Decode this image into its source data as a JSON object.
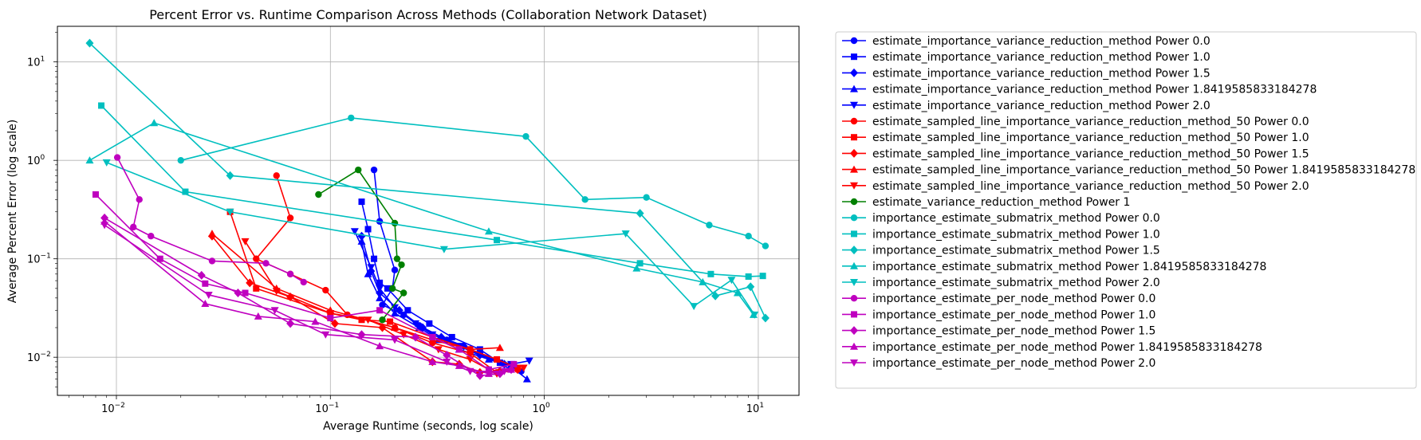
{
  "chart_data": {
    "type": "line",
    "title": "Percent Error vs. Runtime Comparison Across Methods (Collaboration Network Dataset)",
    "xlabel": "Average Runtime (seconds, log scale)",
    "ylabel": "Average Percent Error (log scale)",
    "xscale": "log",
    "yscale": "log",
    "xlim": [
      0.0053,
      15.5
    ],
    "ylim": [
      0.0041,
      23
    ],
    "x_ticks": [
      {
        "value": 0.01,
        "base": "10",
        "exp": "−2"
      },
      {
        "value": 0.1,
        "base": "10",
        "exp": "−1"
      },
      {
        "value": 1,
        "base": "10",
        "exp": "0"
      },
      {
        "value": 10,
        "base": "10",
        "exp": "1"
      }
    ],
    "y_ticks": [
      {
        "value": 0.01,
        "base": "10",
        "exp": "−2"
      },
      {
        "value": 0.1,
        "base": "10",
        "exp": "−1"
      },
      {
        "value": 1,
        "base": "10",
        "exp": "0"
      },
      {
        "value": 10,
        "base": "10",
        "exp": "1"
      }
    ],
    "grid": true,
    "legend_position": "outside-right",
    "series": [
      {
        "name": "estimate_importance_variance_reduction_method Power 0.0",
        "color": "#0000ff",
        "marker": "circle",
        "points": [
          [
            0.16,
            0.8
          ],
          [
            0.17,
            0.24
          ],
          [
            0.2,
            0.077
          ],
          [
            0.195,
            0.05
          ],
          [
            0.175,
            0.034
          ],
          [
            0.22,
            0.027
          ],
          [
            0.26,
            0.021
          ],
          [
            0.35,
            0.015
          ],
          [
            0.5,
            0.011
          ],
          [
            0.7,
            0.0075
          ],
          [
            0.78,
            0.0072
          ]
        ]
      },
      {
        "name": "estimate_importance_variance_reduction_method Power 1.0",
        "color": "#0000ff",
        "marker": "square",
        "points": [
          [
            0.14,
            0.38
          ],
          [
            0.15,
            0.2
          ],
          [
            0.16,
            0.1
          ],
          [
            0.17,
            0.057
          ],
          [
            0.185,
            0.05
          ],
          [
            0.23,
            0.03
          ],
          [
            0.29,
            0.022
          ],
          [
            0.37,
            0.016
          ],
          [
            0.5,
            0.012
          ],
          [
            0.62,
            0.0088
          ],
          [
            0.7,
            0.008
          ]
        ]
      },
      {
        "name": "estimate_importance_variance_reduction_method Power 1.5",
        "color": "#0000ff",
        "marker": "diamond",
        "points": [
          [
            0.14,
            0.17
          ],
          [
            0.155,
            0.075
          ],
          [
            0.17,
            0.045
          ],
          [
            0.21,
            0.03
          ],
          [
            0.27,
            0.02
          ],
          [
            0.33,
            0.016
          ],
          [
            0.42,
            0.013
          ],
          [
            0.5,
            0.0105
          ],
          [
            0.65,
            0.0085
          ],
          [
            0.74,
            0.0078
          ]
        ]
      },
      {
        "name": "estimate_importance_variance_reduction_method Power 1.8419585833184278",
        "color": "#0000ff",
        "marker": "triangle-up",
        "points": [
          [
            0.14,
            0.15
          ],
          [
            0.15,
            0.07
          ],
          [
            0.17,
            0.04
          ],
          [
            0.2,
            0.028
          ],
          [
            0.26,
            0.02
          ],
          [
            0.32,
            0.015
          ],
          [
            0.4,
            0.012
          ],
          [
            0.55,
            0.0095
          ],
          [
            0.7,
            0.008
          ],
          [
            0.83,
            0.006
          ]
        ]
      },
      {
        "name": "estimate_importance_variance_reduction_method Power 2.0",
        "color": "#0000ff",
        "marker": "triangle-down",
        "points": [
          [
            0.13,
            0.19
          ],
          [
            0.155,
            0.082
          ],
          [
            0.17,
            0.05
          ],
          [
            0.2,
            0.032
          ],
          [
            0.25,
            0.022
          ],
          [
            0.3,
            0.017
          ],
          [
            0.4,
            0.013
          ],
          [
            0.5,
            0.0105
          ],
          [
            0.7,
            0.0085
          ],
          [
            0.85,
            0.0092
          ]
        ]
      },
      {
        "name": "estimate_sampled_line_importance_variance_reduction_method_50 Power 0.0",
        "color": "#ff0000",
        "marker": "circle",
        "points": [
          [
            0.056,
            0.7
          ],
          [
            0.065,
            0.26
          ],
          [
            0.045,
            0.1
          ],
          [
            0.065,
            0.07
          ],
          [
            0.095,
            0.048
          ],
          [
            0.12,
            0.027
          ],
          [
            0.2,
            0.02
          ],
          [
            0.3,
            0.014
          ],
          [
            0.45,
            0.011
          ],
          [
            0.6,
            0.007
          ],
          [
            0.75,
            0.0075
          ]
        ]
      },
      {
        "name": "estimate_sampled_line_importance_variance_reduction_method_50 Power 1.0",
        "color": "#ff0000",
        "marker": "square",
        "points": [
          [
            0.034,
            0.3
          ],
          [
            0.045,
            0.05
          ],
          [
            0.1,
            0.028
          ],
          [
            0.14,
            0.024
          ],
          [
            0.19,
            0.023
          ],
          [
            0.3,
            0.016
          ],
          [
            0.45,
            0.012
          ],
          [
            0.6,
            0.0095
          ],
          [
            0.75,
            0.0078
          ]
        ]
      },
      {
        "name": "estimate_sampled_line_importance_variance_reduction_method_50 Power 1.5",
        "color": "#ff0000",
        "marker": "diamond",
        "points": [
          [
            0.028,
            0.17
          ],
          [
            0.042,
            0.057
          ],
          [
            0.065,
            0.041
          ],
          [
            0.105,
            0.022
          ],
          [
            0.175,
            0.02
          ],
          [
            0.3,
            0.009
          ],
          [
            0.4,
            0.0085
          ],
          [
            0.5,
            0.007
          ],
          [
            0.62,
            0.0072
          ],
          [
            0.75,
            0.0075
          ]
        ]
      },
      {
        "name": "estimate_sampled_line_importance_variance_reduction_method_50 Power 1.8419585833184278",
        "color": "#ff0000",
        "marker": "triangle-up",
        "points": [
          [
            0.028,
            0.18
          ],
          [
            0.056,
            0.05
          ],
          [
            0.1,
            0.03
          ],
          [
            0.2,
            0.02
          ],
          [
            0.3,
            0.015
          ],
          [
            0.45,
            0.012
          ],
          [
            0.62,
            0.0125
          ]
        ]
      },
      {
        "name": "estimate_sampled_line_importance_variance_reduction_method_50 Power 2.0",
        "color": "#ff0000",
        "marker": "triangle-down",
        "points": [
          [
            0.04,
            0.15
          ],
          [
            0.056,
            0.047
          ],
          [
            0.1,
            0.028
          ],
          [
            0.15,
            0.024
          ],
          [
            0.22,
            0.017
          ],
          [
            0.32,
            0.012
          ],
          [
            0.45,
            0.0095
          ],
          [
            0.6,
            0.0068
          ],
          [
            0.8,
            0.0078
          ]
        ]
      },
      {
        "name": "estimate_variance_reduction_method Power 1",
        "color": "#008000",
        "marker": "circle",
        "points": [
          [
            0.088,
            0.45
          ],
          [
            0.135,
            0.8
          ],
          [
            0.2,
            0.23
          ],
          [
            0.205,
            0.1
          ],
          [
            0.215,
            0.087
          ],
          [
            0.195,
            0.05
          ],
          [
            0.22,
            0.045
          ],
          [
            0.175,
            0.024
          ]
        ]
      },
      {
        "name": "importance_estimate_submatrix_method Power 0.0",
        "color": "#00bfbf",
        "marker": "circle",
        "points": [
          [
            0.02,
            1.0
          ],
          [
            0.125,
            2.7
          ],
          [
            0.82,
            1.75
          ],
          [
            1.55,
            0.4
          ],
          [
            3.0,
            0.42
          ],
          [
            5.9,
            0.22
          ],
          [
            9.0,
            0.17
          ],
          [
            10.8,
            0.135
          ]
        ]
      },
      {
        "name": "importance_estimate_submatrix_method Power 1.0",
        "color": "#00bfbf",
        "marker": "square",
        "points": [
          [
            0.0085,
            3.6
          ],
          [
            0.021,
            0.48
          ],
          [
            0.6,
            0.155
          ],
          [
            2.8,
            0.09
          ],
          [
            6.0,
            0.07
          ],
          [
            9.0,
            0.066
          ],
          [
            10.5,
            0.067
          ]
        ]
      },
      {
        "name": "importance_estimate_submatrix_method Power 1.5",
        "color": "#00bfbf",
        "marker": "diamond",
        "points": [
          [
            0.0075,
            15.5
          ],
          [
            0.034,
            0.7
          ],
          [
            2.8,
            0.29
          ],
          [
            6.3,
            0.042
          ],
          [
            9.2,
            0.052
          ],
          [
            10.8,
            0.025
          ]
        ]
      },
      {
        "name": "importance_estimate_submatrix_method Power 1.8419585833184278",
        "color": "#00bfbf",
        "marker": "triangle-up",
        "points": [
          [
            0.0075,
            1.0
          ],
          [
            0.015,
            2.4
          ],
          [
            0.55,
            0.19
          ],
          [
            2.7,
            0.08
          ],
          [
            5.5,
            0.058
          ],
          [
            8.0,
            0.045
          ],
          [
            9.5,
            0.027
          ]
        ]
      },
      {
        "name": "importance_estimate_submatrix_method Power 2.0",
        "color": "#00bfbf",
        "marker": "triangle-down",
        "points": [
          [
            0.009,
            0.95
          ],
          [
            0.034,
            0.3
          ],
          [
            0.34,
            0.125
          ],
          [
            2.4,
            0.18
          ],
          [
            5.0,
            0.033
          ],
          [
            7.5,
            0.061
          ],
          [
            9.6,
            0.027
          ]
        ]
      },
      {
        "name": "importance_estimate_per_node_method Power 0.0",
        "color": "#bf00bf",
        "marker": "circle",
        "points": [
          [
            0.0101,
            1.07
          ],
          [
            0.0128,
            0.4
          ],
          [
            0.012,
            0.21
          ],
          [
            0.0145,
            0.17
          ],
          [
            0.028,
            0.095
          ],
          [
            0.05,
            0.09
          ],
          [
            0.065,
            0.07
          ],
          [
            0.075,
            0.058
          ]
        ]
      },
      {
        "name": "importance_estimate_per_node_method Power 1.0",
        "color": "#bf00bf",
        "marker": "square",
        "points": [
          [
            0.008,
            0.45
          ],
          [
            0.016,
            0.1
          ],
          [
            0.026,
            0.056
          ],
          [
            0.04,
            0.045
          ],
          [
            0.1,
            0.025
          ],
          [
            0.17,
            0.03
          ],
          [
            0.3,
            0.016
          ],
          [
            0.4,
            0.012
          ],
          [
            0.55,
            0.0075
          ],
          [
            0.72,
            0.0085
          ]
        ]
      },
      {
        "name": "importance_estimate_per_node_method Power 1.5",
        "color": "#bf00bf",
        "marker": "diamond",
        "points": [
          [
            0.0088,
            0.26
          ],
          [
            0.025,
            0.068
          ],
          [
            0.037,
            0.045
          ],
          [
            0.065,
            0.022
          ],
          [
            0.14,
            0.017
          ],
          [
            0.25,
            0.016
          ],
          [
            0.35,
            0.0105
          ],
          [
            0.5,
            0.0065
          ],
          [
            0.62,
            0.0068
          ],
          [
            0.7,
            0.0075
          ]
        ]
      },
      {
        "name": "importance_estimate_per_node_method Power 1.8419585833184278",
        "color": "#bf00bf",
        "marker": "triangle-up",
        "points": [
          [
            0.0088,
            0.24
          ],
          [
            0.026,
            0.035
          ],
          [
            0.046,
            0.026
          ],
          [
            0.085,
            0.023
          ],
          [
            0.17,
            0.013
          ],
          [
            0.3,
            0.009
          ],
          [
            0.4,
            0.0082
          ],
          [
            0.55,
            0.0068
          ],
          [
            0.7,
            0.0075
          ]
        ]
      },
      {
        "name": "importance_estimate_per_node_method Power 2.0",
        "color": "#bf00bf",
        "marker": "triangle-down",
        "points": [
          [
            0.0088,
            0.22
          ],
          [
            0.027,
            0.043
          ],
          [
            0.055,
            0.03
          ],
          [
            0.095,
            0.017
          ],
          [
            0.2,
            0.015
          ],
          [
            0.35,
            0.009
          ],
          [
            0.45,
            0.0072
          ],
          [
            0.65,
            0.0072
          ]
        ]
      }
    ]
  }
}
